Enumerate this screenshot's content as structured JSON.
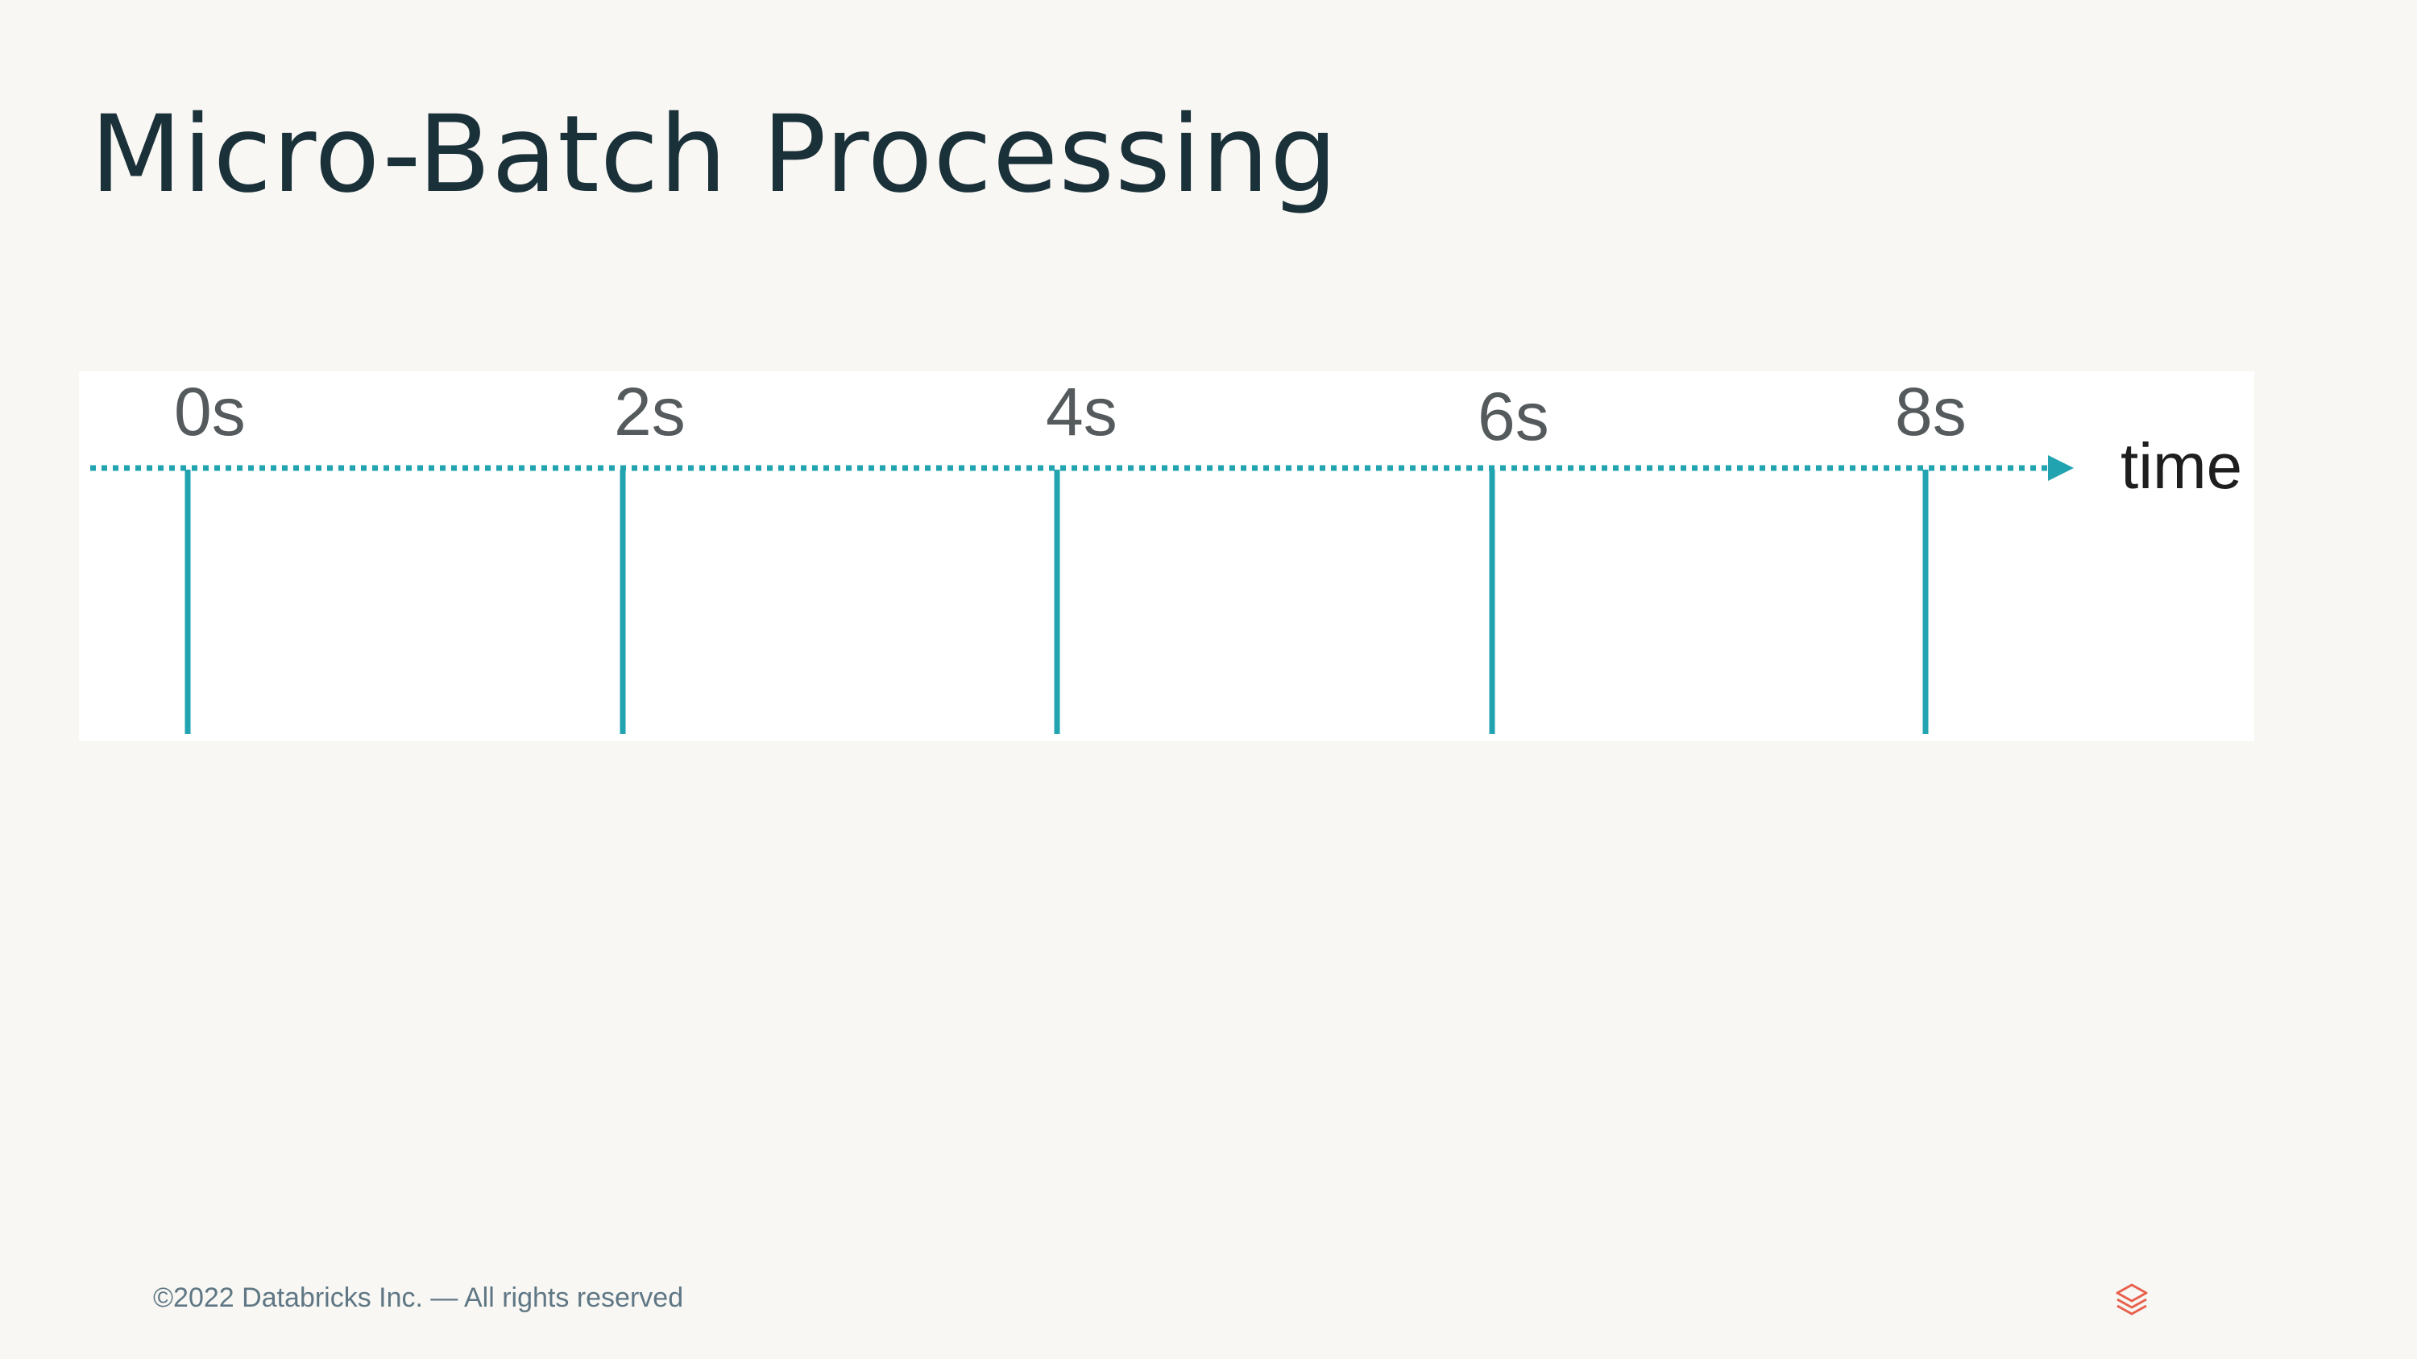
{
  "slide": {
    "title": "Micro-Batch Processing"
  },
  "timeline": {
    "ticks": [
      "0s",
      "2s",
      "4s",
      "6s",
      "8s"
    ],
    "axis_label": "time",
    "line_color": "#21a3b0"
  },
  "footer": {
    "copyright": "©2022 Databricks Inc. — All rights reserved",
    "logo_icon": "databricks-logo-icon",
    "logo_color": "#e8604c"
  }
}
